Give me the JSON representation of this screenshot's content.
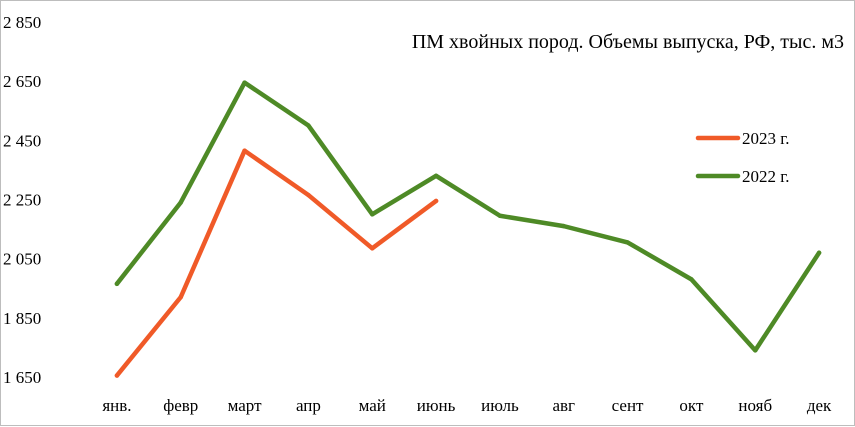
{
  "chart_data": {
    "type": "line",
    "title": "ПМ хвойных пород. Объемы выпуска, РФ, тыс. м3",
    "xlabel": "",
    "ylabel": "",
    "categories": [
      "янв.",
      "февр",
      "март",
      "апр",
      "май",
      "июнь",
      "июль",
      "авг",
      "сент",
      "окт",
      "нояб",
      "дек"
    ],
    "ylim": [
      1650,
      2850
    ],
    "yticks": [
      1650,
      1850,
      2050,
      2250,
      2450,
      2650,
      2850
    ],
    "ytick_labels": [
      "1 650",
      "1 850",
      "2 050",
      "2 250",
      "2 450",
      "2 650",
      "2 850"
    ],
    "grid": false,
    "legend_position": "right",
    "series": [
      {
        "name": "2023 г.",
        "color": "#f05a28",
        "values": [
          1655,
          1920,
          2415,
          2265,
          2085,
          2245,
          null,
          null,
          null,
          null,
          null,
          null
        ]
      },
      {
        "name": "2022 г.",
        "color": "#4e8a26",
        "values": [
          1965,
          2240,
          2645,
          2500,
          2200,
          2330,
          2195,
          2160,
          2105,
          1980,
          1740,
          2070
        ]
      }
    ]
  }
}
